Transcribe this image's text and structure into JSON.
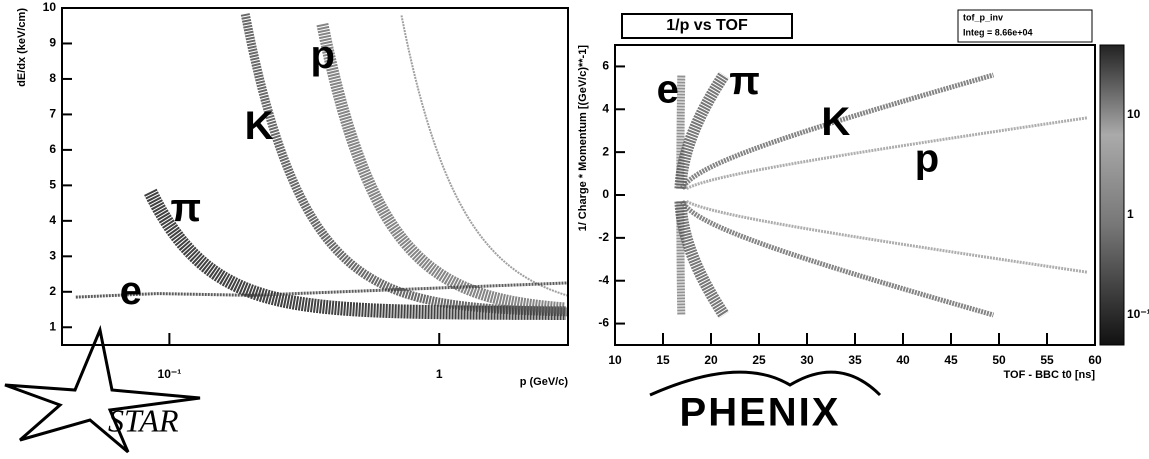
{
  "chart_data": [
    {
      "type": "density",
      "log_x": true,
      "xlabel": "p (GeV/c)",
      "ylabel": "dE/dx (keV/cm)",
      "xlim": [
        0.04,
        3
      ],
      "xticks": [
        {
          "value": 0.1,
          "label": "10⁻¹"
        },
        1
      ],
      "ylim": [
        0.5,
        10
      ],
      "yticks": [
        1,
        2,
        3,
        4,
        5,
        6,
        7,
        8,
        9,
        10
      ],
      "annotations": [
        {
          "text": "e",
          "x": 0.072,
          "y": 1.95
        },
        {
          "text": "π",
          "x": 0.115,
          "y": 4.3
        },
        {
          "text": "K",
          "x": 0.215,
          "y": 6.6
        },
        {
          "text": "p",
          "x": 0.37,
          "y": 8.6
        }
      ],
      "logo": "STAR"
    },
    {
      "type": "density",
      "title": "1/p vs TOF",
      "stats": [
        "tof_p_inv",
        "Integ = 8.66e+04"
      ],
      "xlabel": "TOF - BBC t0 [ns]",
      "ylabel": "1/ Charge * Momentum [(GeV/c)**-1]",
      "xlim": [
        10,
        60
      ],
      "xticks": [
        10,
        15,
        20,
        25,
        30,
        35,
        40,
        45,
        50,
        55,
        60
      ],
      "ylim": [
        -7,
        7
      ],
      "yticks": [
        -6,
        -4,
        -2,
        0,
        2,
        4,
        6
      ],
      "colorbar_labels": [
        "10",
        "1",
        "10⁻¹"
      ],
      "annotations": [
        {
          "text": "e",
          "x": 15.5,
          "y": 4.8
        },
        {
          "text": "π",
          "x": 23.5,
          "y": 5.2
        },
        {
          "text": "K",
          "x": 33,
          "y": 3.3
        },
        {
          "text": "p",
          "x": 42.5,
          "y": 1.6
        }
      ],
      "logo": "PHENIX"
    }
  ]
}
